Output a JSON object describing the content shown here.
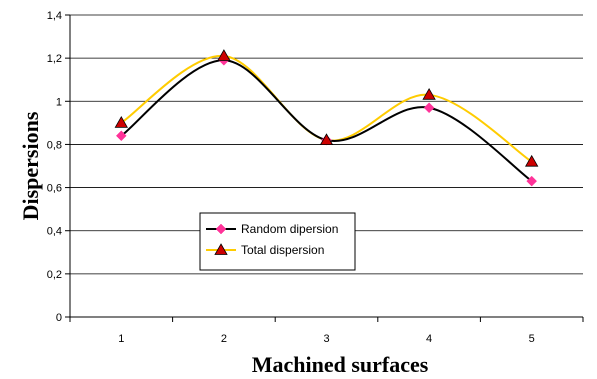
{
  "chart_data": {
    "type": "line",
    "title": "",
    "xlabel": "Machined surfaces",
    "ylabel": "Dispersions",
    "categories": [
      "1",
      "2",
      "3",
      "4",
      "5"
    ],
    "ylim": [
      0,
      1.4
    ],
    "yticks": [
      "0",
      "0,2",
      "0,4",
      "0,6",
      "0,8",
      "1",
      "1,2",
      "1,4"
    ],
    "grid": "horizontal",
    "legend_position": "lower-left inside plot",
    "series": [
      {
        "name": "Random dipersion",
        "values": [
          0.84,
          1.19,
          0.82,
          0.97,
          0.63
        ],
        "line_color": "#000000",
        "marker": "diamond",
        "marker_color": "#ff3399"
      },
      {
        "name": "Total dispersion",
        "values": [
          0.9,
          1.21,
          0.82,
          1.03,
          0.72
        ],
        "line_color": "#ffcc00",
        "marker": "triangle",
        "marker_color": "#cc0000"
      }
    ]
  }
}
